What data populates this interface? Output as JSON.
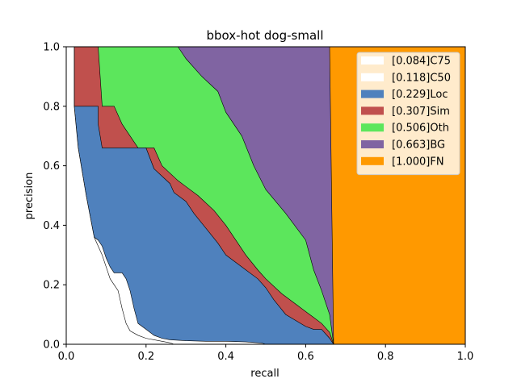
{
  "chart_data": {
    "type": "area",
    "title": "bbox-hot dog-small",
    "xlabel": "recall",
    "ylabel": "precision",
    "xlim": [
      0,
      1
    ],
    "ylim": [
      0,
      1
    ],
    "xticks": [
      "0.0",
      "0.2",
      "0.4",
      "0.6",
      "0.8",
      "1.0"
    ],
    "yticks": [
      "0.0",
      "0.2",
      "0.4",
      "0.6",
      "0.8",
      "1.0"
    ],
    "legend_position": "top-right",
    "grid": false,
    "series": [
      {
        "name": "[0.084]C75",
        "color": "#ffffff",
        "x": [
          0,
          0.02,
          0.02,
          0.03,
          0.04,
          0.05,
          0.06,
          0.07,
          0.08,
          0.09,
          0.1,
          0.11,
          0.12,
          0.13,
          0.14,
          0.15,
          0.16,
          0.18,
          0.2,
          0.22,
          0.24,
          0.26,
          0.27
        ],
        "y": [
          1.0,
          1.0,
          0.8,
          0.66,
          0.58,
          0.5,
          0.43,
          0.36,
          0.33,
          0.3,
          0.26,
          0.22,
          0.2,
          0.18,
          0.12,
          0.07,
          0.045,
          0.03,
          0.02,
          0.015,
          0.01,
          0.005,
          0.0
        ]
      },
      {
        "name": "[0.118]C50",
        "color": "#ffffff",
        "x": [
          0,
          0.02,
          0.02,
          0.03,
          0.04,
          0.05,
          0.06,
          0.07,
          0.08,
          0.09,
          0.1,
          0.11,
          0.12,
          0.14,
          0.15,
          0.16,
          0.17,
          0.18,
          0.2,
          0.22,
          0.24,
          0.26,
          0.3,
          0.35,
          0.4,
          0.45,
          0.49,
          0.5
        ],
        "y": [
          1.0,
          1.0,
          0.8,
          0.66,
          0.58,
          0.5,
          0.43,
          0.36,
          0.35,
          0.33,
          0.29,
          0.26,
          0.24,
          0.24,
          0.22,
          0.18,
          0.12,
          0.07,
          0.05,
          0.03,
          0.02,
          0.015,
          0.012,
          0.01,
          0.01,
          0.008,
          0.004,
          0.0
        ]
      },
      {
        "name": "[0.229]Loc",
        "color": "#4f81bd",
        "x": [
          0,
          0.02,
          0.02,
          0.08,
          0.08,
          0.09,
          0.14,
          0.16,
          0.2,
          0.22,
          0.26,
          0.27,
          0.3,
          0.32,
          0.35,
          0.38,
          0.4,
          0.45,
          0.48,
          0.5,
          0.52,
          0.55,
          0.6,
          0.62,
          0.64,
          0.66,
          0.67
        ],
        "y": [
          1.0,
          1.0,
          0.8,
          0.8,
          0.74,
          0.66,
          0.66,
          0.66,
          0.66,
          0.59,
          0.54,
          0.51,
          0.48,
          0.44,
          0.39,
          0.34,
          0.3,
          0.25,
          0.22,
          0.19,
          0.15,
          0.1,
          0.06,
          0.05,
          0.05,
          0.02,
          0.0
        ]
      },
      {
        "name": "[0.307]Sim",
        "color": "#c0504d",
        "x": [
          0,
          0.02,
          0.02,
          0.08,
          0.09,
          0.12,
          0.14,
          0.16,
          0.18,
          0.22,
          0.24,
          0.28,
          0.3,
          0.33,
          0.37,
          0.4,
          0.45,
          0.48,
          0.5,
          0.54,
          0.58,
          0.62,
          0.64,
          0.66,
          0.67
        ],
        "y": [
          1.0,
          1.0,
          1.0,
          1.0,
          0.8,
          0.8,
          0.74,
          0.7,
          0.66,
          0.66,
          0.6,
          0.55,
          0.53,
          0.5,
          0.45,
          0.4,
          0.3,
          0.25,
          0.22,
          0.17,
          0.13,
          0.09,
          0.07,
          0.04,
          0.0
        ]
      },
      {
        "name": "[0.506]Oth",
        "color": "#5ce65c",
        "x": [
          0,
          0.02,
          0.08,
          0.09,
          0.12,
          0.15,
          0.2,
          0.24,
          0.28,
          0.3,
          0.34,
          0.38,
          0.4,
          0.44,
          0.47,
          0.5,
          0.55,
          0.6,
          0.62,
          0.64,
          0.66,
          0.67
        ],
        "y": [
          1.0,
          1.0,
          1.0,
          1.0,
          1.0,
          1.0,
          1.0,
          1.0,
          1.0,
          0.96,
          0.9,
          0.85,
          0.78,
          0.7,
          0.6,
          0.52,
          0.44,
          0.35,
          0.25,
          0.18,
          0.1,
          0.0
        ]
      },
      {
        "name": "[0.663]BG",
        "color": "#8064a2",
        "x": [
          0,
          0.66,
          0.67
        ],
        "y": [
          1.0,
          1.0,
          0.0
        ]
      },
      {
        "name": "[1.000]FN",
        "color": "#ff9900",
        "x": [
          0,
          1.0
        ],
        "y": [
          1.0,
          1.0
        ]
      }
    ]
  }
}
